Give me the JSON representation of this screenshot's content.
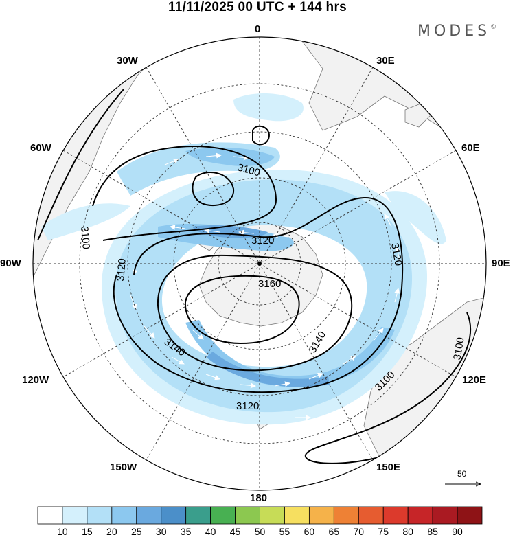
{
  "header": {
    "title": "11/11/2025  00 UTC  + 144 hrs",
    "brand": "MODES",
    "brand_mark": "©"
  },
  "longitude_labels": [
    {
      "id": "lon-0",
      "text": "0"
    },
    {
      "id": "lon-30e",
      "text": "30E"
    },
    {
      "id": "lon-60e",
      "text": "60E"
    },
    {
      "id": "lon-90e",
      "text": "90E"
    },
    {
      "id": "lon-120e",
      "text": "120E"
    },
    {
      "id": "lon-150e",
      "text": "150E"
    },
    {
      "id": "lon-180",
      "text": "180"
    },
    {
      "id": "lon-150w",
      "text": "150W"
    },
    {
      "id": "lon-120w",
      "text": "120W"
    },
    {
      "id": "lon-90w",
      "text": "90W"
    },
    {
      "id": "lon-60w",
      "text": "60W"
    },
    {
      "id": "lon-30w",
      "text": "30W"
    }
  ],
  "contour_labels": [
    "3100",
    "3100",
    "3120",
    "3120",
    "3120",
    "3120",
    "3140",
    "3140",
    "3160",
    "3100",
    "3100"
  ],
  "reference_vector": {
    "label": "50"
  },
  "colorbar": {
    "labels": [
      "10",
      "15",
      "20",
      "25",
      "30",
      "35",
      "40",
      "45",
      "50",
      "55",
      "60",
      "65",
      "70",
      "75",
      "80",
      "85",
      "90"
    ],
    "colors": [
      "#ffffff",
      "#d4f0fc",
      "#b3e0f7",
      "#8cc8ef",
      "#6aa9df",
      "#4b8fc9",
      "#3a9e8c",
      "#48b052",
      "#8cc850",
      "#c7dc57",
      "#f6df60",
      "#f5b24a",
      "#ee8135",
      "#e65c30",
      "#dc3a2c",
      "#c62528",
      "#aa1a22",
      "#8e1316"
    ]
  },
  "colors": {
    "land": "#f2f2f2",
    "coast": "#777777",
    "grid": "#333333",
    "contour": "#000000",
    "wind_light": "#d4f0fc",
    "wind_mid": "#b3e0f7",
    "wind_strong": "#8cc8ef",
    "wind_core": "#6aa9df"
  }
}
